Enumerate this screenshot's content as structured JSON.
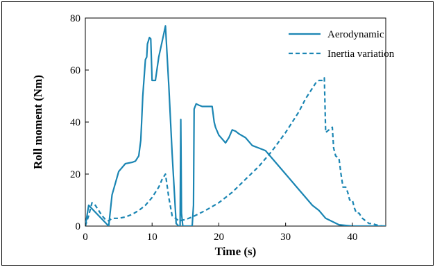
{
  "chart_data": {
    "type": "line",
    "xlabel": "Time (s)",
    "ylabel": "Roll moment (Nm)",
    "xlim": [
      0,
      45
    ],
    "ylim": [
      0,
      80
    ],
    "xticks": [
      0,
      10,
      20,
      30,
      40
    ],
    "yticks": [
      0,
      20,
      40,
      60,
      80
    ],
    "grid": false,
    "legend_position": "top-right",
    "series": [
      {
        "name": "Aerodynamic",
        "style": "solid",
        "color": "#1a85b3",
        "x": [
          0,
          0.5,
          3.5,
          4,
          5,
          6,
          7,
          7.5,
          8,
          8.3,
          8.4,
          8.6,
          9,
          9.2,
          9.3,
          9.6,
          9.8,
          10,
          10.5,
          11,
          11.5,
          12,
          12.5,
          13,
          13.6,
          14,
          14.2,
          14.3,
          14.4,
          14.6,
          15,
          15.5,
          16,
          16.2,
          16.3,
          16.6,
          17,
          17.5,
          18,
          19,
          19.3,
          19.5,
          20,
          21,
          21.5,
          22,
          22.5,
          23,
          24,
          25,
          26,
          27,
          28,
          30,
          32,
          34,
          35,
          36,
          38,
          40,
          42,
          45
        ],
        "y": [
          0,
          8,
          0,
          12,
          21,
          24,
          24.5,
          25,
          27,
          33,
          38,
          50,
          64,
          65,
          70,
          72.5,
          72,
          56,
          56,
          65,
          71,
          77,
          54,
          28,
          1,
          0,
          0,
          41,
          5,
          0,
          0,
          0,
          0,
          8,
          45,
          47,
          46.5,
          46,
          46,
          46,
          40,
          38,
          35,
          32,
          34,
          37,
          36.5,
          35.5,
          34,
          31,
          30,
          29,
          26,
          20,
          14,
          8,
          6,
          3,
          0.5,
          0,
          0,
          0
        ]
      },
      {
        "name": "Inertia variation",
        "style": "dashed",
        "color": "#1a85b3",
        "x": [
          0,
          0.5,
          1,
          1.5,
          2,
          2.5,
          3,
          3.5,
          4,
          5,
          6,
          7,
          8,
          9,
          10,
          11,
          11.5,
          12,
          12.5,
          13,
          14,
          15,
          16,
          18,
          20,
          22,
          24,
          26,
          28,
          30,
          32,
          33,
          34,
          34.5,
          35,
          35.5,
          35.8,
          36,
          36.5,
          37,
          37.2,
          37.5,
          38,
          38.3,
          38.6,
          39,
          39.3,
          39.6,
          40,
          40.3,
          40.6,
          41,
          41.5,
          42,
          42.5,
          43,
          43.5,
          44,
          44.5,
          45
        ],
        "y": [
          0,
          4,
          9,
          8,
          6,
          4,
          2.5,
          2,
          3,
          3,
          3.5,
          4.5,
          6,
          8,
          11,
          15,
          18,
          20,
          11,
          4,
          2,
          2.5,
          3.5,
          6,
          9,
          13,
          18,
          23,
          29,
          36,
          44,
          49,
          53,
          55,
          56,
          56,
          57,
          36,
          37,
          38,
          30,
          27,
          26,
          20,
          15,
          15,
          13,
          10,
          10,
          7,
          5,
          5,
          3,
          2,
          1,
          1,
          0.5,
          0.2,
          0,
          0
        ]
      }
    ]
  }
}
